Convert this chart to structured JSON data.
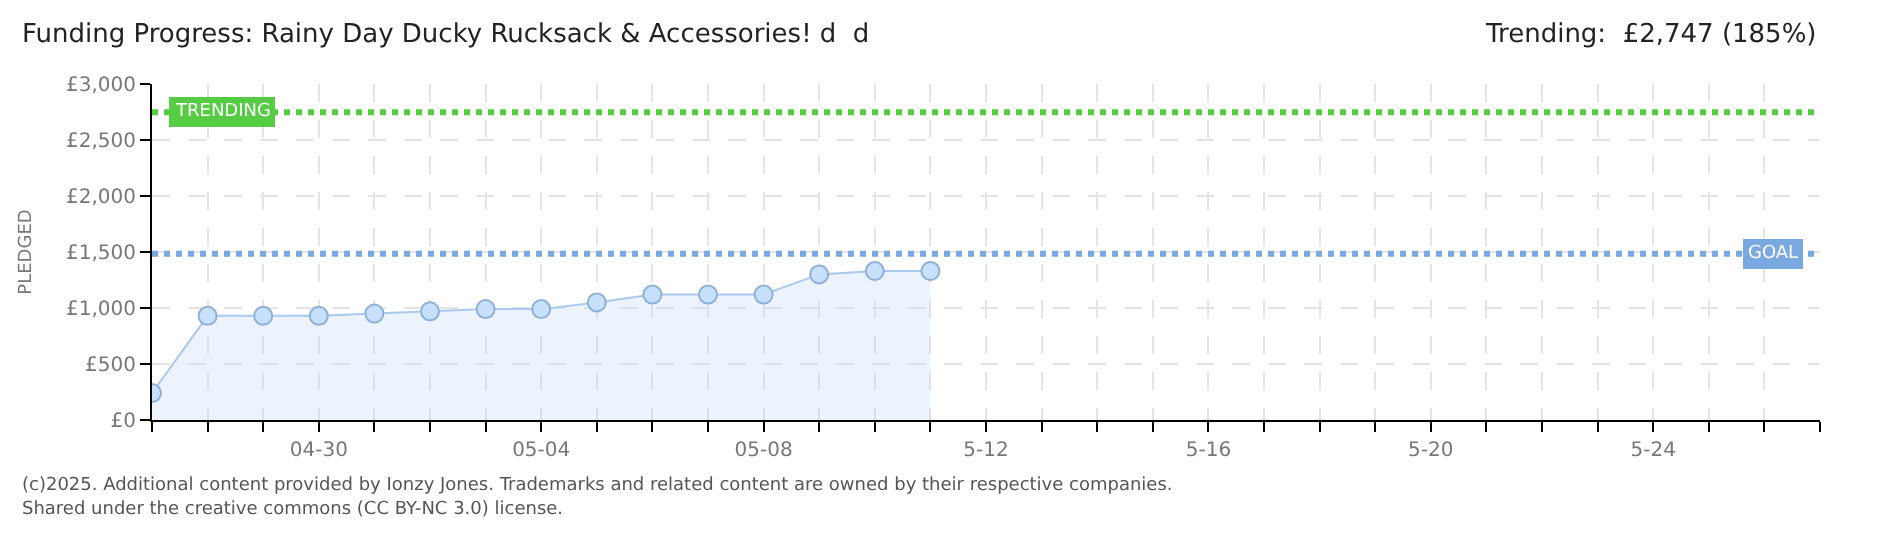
{
  "chart_data": {
    "type": "area",
    "title": "Funding Progress: Rainy Day Ducky Rucksack & Accessories! d  d",
    "subtitle": "Trending:  £2,747 (185%)",
    "ylabel": "PLEDGED",
    "x": [
      "2025-04-27",
      "2025-04-28",
      "2025-04-29",
      "2025-04-30",
      "2025-05-01",
      "2025-05-02",
      "2025-05-03",
      "2025-05-04",
      "2025-05-05",
      "2025-05-06",
      "2025-05-07",
      "2025-05-08",
      "2025-05-09",
      "2025-05-10",
      "2025-05-11"
    ],
    "series": [
      {
        "color": "#a9c9ee",
        "values": [
          240,
          930,
          930,
          930,
          950,
          970,
          990,
          990,
          1050,
          1120,
          1120,
          1120,
          1300,
          1330,
          1330
        ]
      }
    ],
    "xlim": [
      "2025-04-27",
      "2025-05-27"
    ],
    "xticks": [
      {
        "value": "2025-04-27",
        "label": null
      },
      {
        "value": "2025-04-28",
        "label": null
      },
      {
        "value": "2025-04-29",
        "label": null
      },
      {
        "value": "2025-04-30",
        "label": "04-30"
      },
      {
        "value": "2025-05-01",
        "label": null
      },
      {
        "value": "2025-05-02",
        "label": null
      },
      {
        "value": "2025-05-03",
        "label": null
      },
      {
        "value": "2025-05-04",
        "label": "05-04"
      },
      {
        "value": "2025-05-05",
        "label": null
      },
      {
        "value": "2025-05-06",
        "label": null
      },
      {
        "value": "2025-05-07",
        "label": null
      },
      {
        "value": "2025-05-08",
        "label": "05-08"
      },
      {
        "value": "2025-05-09",
        "label": null
      },
      {
        "value": "2025-05-10",
        "label": null
      },
      {
        "value": "2025-05-11",
        "label": null
      },
      {
        "value": "2025-05-12",
        "label": "5-12"
      },
      {
        "value": "2025-05-13",
        "label": null
      },
      {
        "value": "2025-05-14",
        "label": null
      },
      {
        "value": "2025-05-15",
        "label": null
      },
      {
        "value": "2025-05-16",
        "label": "5-16"
      },
      {
        "value": "2025-05-17",
        "label": null
      },
      {
        "value": "2025-05-18",
        "label": null
      },
      {
        "value": "2025-05-19",
        "label": null
      },
      {
        "value": "2025-05-20",
        "label": "5-20"
      },
      {
        "value": "2025-05-21",
        "label": null
      },
      {
        "value": "2025-05-22",
        "label": null
      },
      {
        "value": "2025-05-23",
        "label": null
      },
      {
        "value": "2025-05-24",
        "label": "5-24"
      },
      {
        "value": "2025-05-25",
        "label": null
      },
      {
        "value": "2025-05-26",
        "label": null
      },
      {
        "value": "2025-05-27",
        "label": null
      }
    ],
    "ylim": [
      0,
      3000
    ],
    "yticks": [
      {
        "value": 0,
        "label": "£0"
      },
      {
        "value": 500,
        "label": "£500"
      },
      {
        "value": 1000,
        "label": "£1,000"
      },
      {
        "value": 1500,
        "label": "£1,500"
      },
      {
        "value": 2000,
        "label": "£2,000"
      },
      {
        "value": 2500,
        "label": "£2,500"
      },
      {
        "value": 3000,
        "label": "£3,000"
      }
    ],
    "grid": true,
    "marker": "circle",
    "line_style": "solid",
    "ref_lines": [
      {
        "axis": "y",
        "value": 2747,
        "label": "TRENDING",
        "color": "#55cc44",
        "line_style": "dotted"
      },
      {
        "axis": "y",
        "value": 1485,
        "label": "GOAL",
        "color": "#7aa8e0",
        "line_style": "dotted"
      }
    ],
    "annotations": [
      "(c)2025. Additional content provided by Ionzy Jones. Trademarks and related content are owned by their respective companies.",
      "Shared under the creative commons (CC BY-NC 3.0) license."
    ]
  }
}
